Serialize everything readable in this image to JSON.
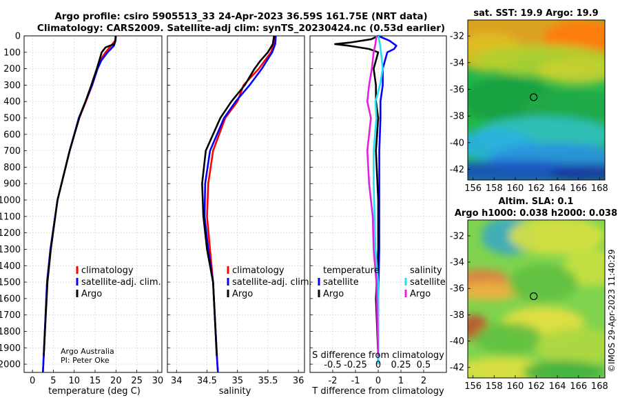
{
  "title": {
    "line1": "Argo profile: csiro 5905513_33 24-Apr-2023 36.59S 161.75E (NRT data)",
    "line2": "Climatology: CARS2009. Satellite-adj clim: synTS_20230424.nc (0.53d earlier)"
  },
  "credit": {
    "line1": "Argo Australia",
    "line2": "PI: Peter Oke"
  },
  "stamp": "©IMOS 29-Apr-2023 11:40:29",
  "colors": {
    "climatology": "#ff0000",
    "satellite": "#0000ff",
    "argo": "#000000",
    "sat_s": "#22e0ee",
    "argo_s": "#e020e0"
  },
  "chart_data": [
    {
      "type": "line",
      "id": "temperature",
      "xlabel": "temperature (deg C)",
      "ylabel": "",
      "xlim": [
        -2,
        31
      ],
      "ylim": [
        0,
        2050
      ],
      "y_inverted": true,
      "xticks": [
        "0",
        "5",
        "10",
        "15",
        "20",
        "25",
        "30"
      ],
      "yticks": [
        "0",
        "100",
        "200",
        "300",
        "400",
        "500",
        "600",
        "700",
        "800",
        "900",
        "1000",
        "1100",
        "1200",
        "1300",
        "1400",
        "1500",
        "1600",
        "1700",
        "1800",
        "1900",
        "2000"
      ],
      "legend": [
        "climatology",
        "satellite-adj. clim.",
        "Argo"
      ],
      "series": [
        {
          "name": "climatology",
          "depth": [
            0,
            30,
            60,
            100,
            150,
            200,
            300,
            400,
            500,
            700,
            1000,
            1300,
            1500,
            2000,
            2050
          ],
          "values": [
            20.0,
            19.8,
            18.8,
            17.5,
            16.2,
            15.5,
            14.3,
            12.8,
            11.2,
            8.9,
            6.0,
            4.3,
            3.5,
            2.6,
            2.5
          ]
        },
        {
          "name": "satellite-adj. clim.",
          "depth": [
            0,
            30,
            60,
            100,
            150,
            200,
            300,
            400,
            500,
            700,
            1000,
            1300,
            1500,
            2000,
            2050
          ],
          "values": [
            20.0,
            19.9,
            19.5,
            18.0,
            16.5,
            15.6,
            14.3,
            12.7,
            11.1,
            8.9,
            6.0,
            4.3,
            3.5,
            2.6,
            2.5
          ]
        },
        {
          "name": "Argo",
          "depth": [
            0,
            20,
            50,
            70,
            100,
            150,
            200,
            300,
            400,
            500,
            700,
            1000,
            1300,
            1500,
            1950
          ],
          "values": [
            19.9,
            19.9,
            19.6,
            17.5,
            16.6,
            16.0,
            15.4,
            14.1,
            12.7,
            11.2,
            8.9,
            6.0,
            4.4,
            3.6,
            2.7
          ]
        }
      ]
    },
    {
      "type": "line",
      "id": "salinity",
      "xlabel": "salinity",
      "xlim": [
        33.85,
        36.1
      ],
      "ylim": [
        0,
        2050
      ],
      "y_inverted": true,
      "xticks": [
        "34",
        "34.5",
        "35",
        "35.5",
        "36"
      ],
      "legend": [
        "climatology",
        "satellite-adj. clim.",
        "Argo"
      ],
      "series": [
        {
          "name": "climatology",
          "depth": [
            0,
            50,
            100,
            200,
            300,
            400,
            500,
            700,
            900,
            1100,
            1300,
            1500,
            2000,
            2050
          ],
          "values": [
            35.62,
            35.6,
            35.55,
            35.35,
            35.1,
            35.0,
            34.8,
            34.6,
            34.52,
            34.5,
            34.55,
            34.6,
            34.67,
            34.68
          ]
        },
        {
          "name": "satellite-adj. clim.",
          "depth": [
            0,
            50,
            100,
            200,
            300,
            400,
            500,
            700,
            900,
            1100,
            1300,
            1500,
            2000,
            2050
          ],
          "values": [
            35.63,
            35.62,
            35.57,
            35.4,
            35.2,
            34.97,
            34.78,
            34.55,
            34.47,
            34.46,
            34.52,
            34.6,
            34.67,
            34.68
          ]
        },
        {
          "name": "Argo",
          "depth": [
            0,
            50,
            100,
            150,
            200,
            300,
            400,
            500,
            700,
            900,
            1100,
            1300,
            1500,
            1950
          ],
          "values": [
            35.6,
            35.58,
            35.5,
            35.38,
            35.28,
            35.12,
            34.9,
            34.72,
            34.48,
            34.42,
            34.44,
            34.5,
            34.6,
            34.66
          ]
        }
      ]
    },
    {
      "type": "line",
      "id": "difference",
      "xlabel": "T difference from climatology",
      "xlabel_top": "S difference from climatology",
      "xlim": [
        -3,
        3
      ],
      "ylim": [
        0,
        2050
      ],
      "y_inverted": true,
      "xticks": [
        "-2",
        "-1",
        "0",
        "1",
        "2"
      ],
      "xticks_s": [
        "-0.5",
        "-0.25",
        "0",
        "0.25",
        "0.5"
      ],
      "legend_t_title": "temperature",
      "legend_s_title": "salinity",
      "legend_t": [
        "satellite",
        "Argo"
      ],
      "legend_s": [
        "satellite",
        "Argo"
      ],
      "series": [
        {
          "name": "T satellite",
          "depth": [
            0,
            30,
            60,
            80,
            100,
            150,
            200,
            300,
            400,
            500,
            700,
            1000,
            1300,
            1600,
            2000
          ],
          "values": [
            0.0,
            0.5,
            0.8,
            0.7,
            0.4,
            0.3,
            0.2,
            0.2,
            0.1,
            0.1,
            0.05,
            0.05,
            0.05,
            0.0,
            0.0
          ]
        },
        {
          "name": "T Argo",
          "depth": [
            0,
            20,
            40,
            50,
            60,
            80,
            100,
            200,
            300,
            400,
            500,
            700,
            1000,
            1300,
            1600,
            1950
          ],
          "values": [
            0.0,
            -0.3,
            -1.2,
            -1.9,
            -1.3,
            -0.4,
            0.0,
            -0.2,
            -0.1,
            -0.1,
            0.0,
            -0.1,
            0.0,
            0.0,
            -0.1,
            0.0
          ]
        },
        {
          "name": "S satellite",
          "depth": [
            0,
            50,
            100,
            200,
            300,
            400,
            500,
            700,
            900,
            1100,
            1300,
            1500,
            2000
          ],
          "values": [
            0.0,
            0.02,
            0.03,
            0.05,
            0.02,
            -0.03,
            -0.02,
            -0.05,
            -0.05,
            -0.04,
            -0.03,
            0.0,
            0.0
          ]
        },
        {
          "name": "S Argo",
          "depth": [
            0,
            50,
            100,
            200,
            300,
            400,
            500,
            700,
            900,
            1100,
            1300,
            1500,
            1950
          ],
          "values": [
            -0.02,
            -0.03,
            -0.05,
            -0.07,
            -0.1,
            -0.12,
            -0.08,
            -0.12,
            -0.1,
            -0.06,
            -0.05,
            -0.02,
            0.0
          ]
        }
      ]
    },
    {
      "type": "heatmap",
      "id": "sst-map",
      "title": "sat. SST: 19.9 Argo: 19.9",
      "xticks": [
        "156",
        "158",
        "160",
        "162",
        "164",
        "166",
        "168"
      ],
      "yticks": [
        "-32",
        "-34",
        "-36",
        "-38",
        "-40",
        "-42"
      ],
      "xlim": [
        155.5,
        168.5
      ],
      "ylim": [
        -42.8,
        -30.8
      ],
      "marker": {
        "lon": 161.75,
        "lat": -36.59
      }
    },
    {
      "type": "heatmap",
      "id": "sla-map",
      "title_line1": "Altim. SLA: 0.1",
      "title_line2": "Argo h1000: 0.038 h2000: 0.038",
      "xticks": [
        "156",
        "158",
        "160",
        "162",
        "164",
        "166",
        "168"
      ],
      "yticks": [
        "-32",
        "-34",
        "-36",
        "-38",
        "-40",
        "-42"
      ],
      "xlim": [
        155.5,
        168.5
      ],
      "ylim": [
        -42.8,
        -30.8
      ],
      "marker": {
        "lon": 161.75,
        "lat": -36.59
      }
    }
  ]
}
